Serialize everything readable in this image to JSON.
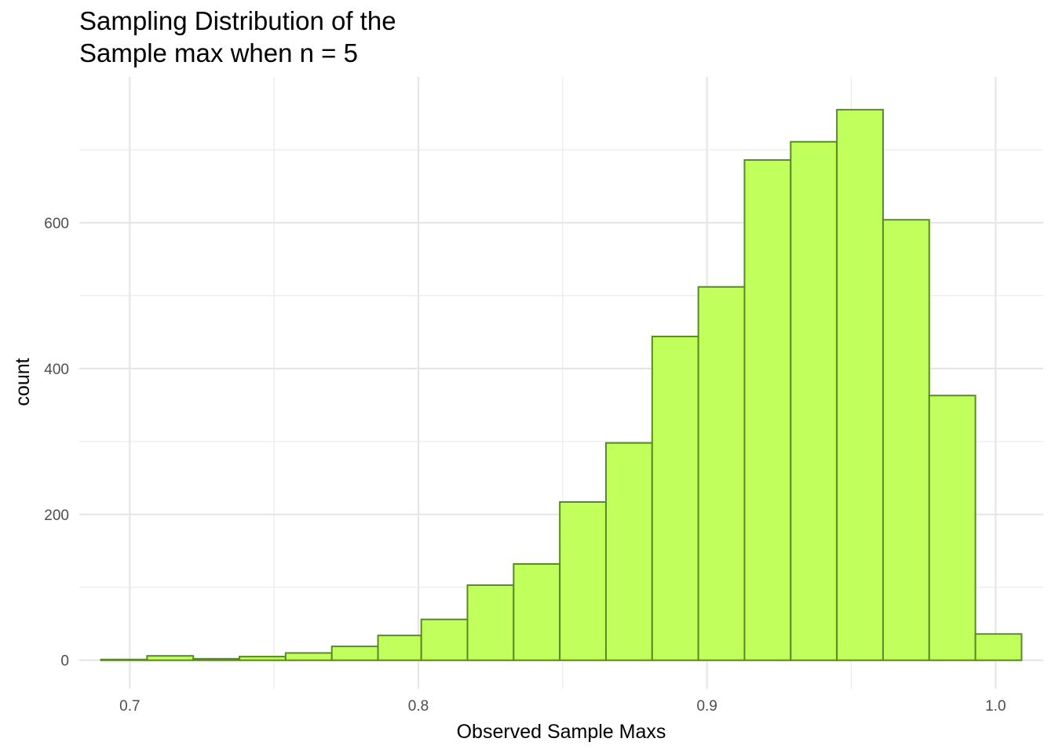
{
  "chart_data": {
    "type": "bar",
    "title_lines": [
      "Sampling Distribution of the",
      "Sample max when n = 5"
    ],
    "xlabel": "Observed Sample Maxs",
    "ylabel": "count",
    "xlim": [
      0.6825,
      1.0165
    ],
    "ylim": [
      -39,
      800
    ],
    "x_ticks": [
      0.7,
      0.8,
      0.9,
      1.0
    ],
    "x_tick_labels": [
      "0.7",
      "0.8",
      "0.9",
      "1.0"
    ],
    "y_ticks": [
      0,
      200,
      400,
      600
    ],
    "y_tick_labels": [
      "0",
      "200",
      "400",
      "600"
    ],
    "bin_width": 0.0159,
    "bin_edges": [
      0.69,
      0.706,
      0.722,
      0.738,
      0.754,
      0.77,
      0.786,
      0.801,
      0.817,
      0.833,
      0.849,
      0.865,
      0.881,
      0.897,
      0.913,
      0.929,
      0.945,
      0.961,
      0.977,
      0.993,
      1.009
    ],
    "values": [
      1,
      6,
      2,
      5,
      10,
      19,
      34,
      56,
      103,
      132,
      217,
      298,
      444,
      512,
      686,
      711,
      755,
      604,
      363,
      36
    ],
    "fill_color": "#c1ff5c",
    "stroke_color": "#5a8a23",
    "grid": true,
    "legend": "none"
  }
}
